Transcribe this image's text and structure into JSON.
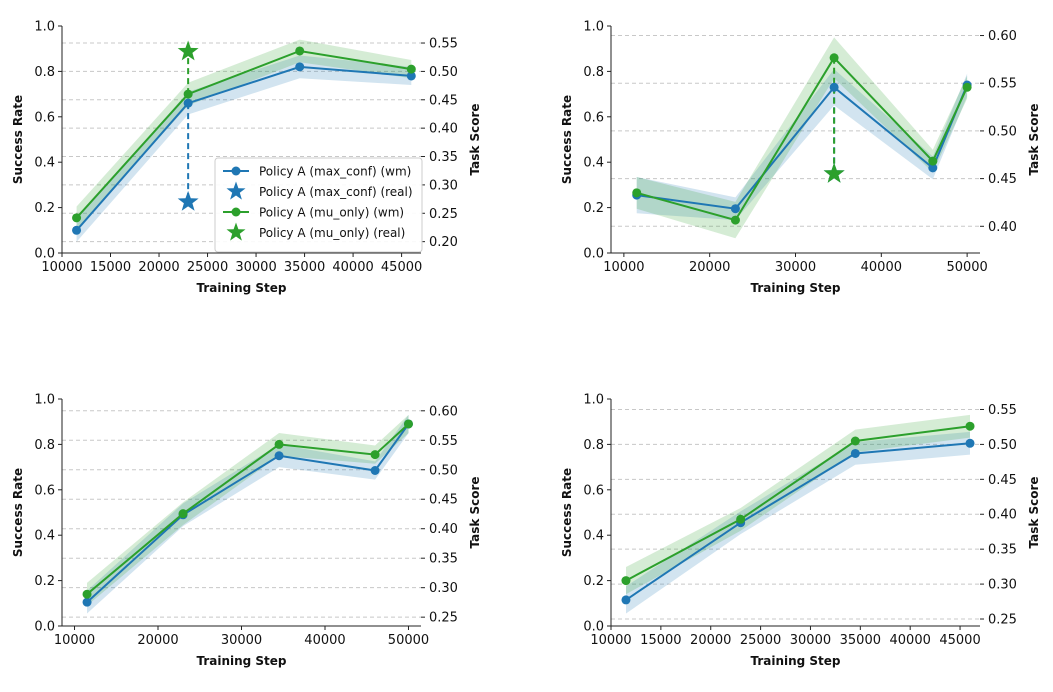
{
  "colors": {
    "policy_max_conf": "#1f77b4",
    "policy_mu_only": "#2ca02c",
    "grid": "#c8c8c8"
  },
  "legend": {
    "entries": [
      {
        "label": "Policy A (max_conf) (wm)",
        "series": "max_conf",
        "marker": "circle"
      },
      {
        "label": "Policy A (max_conf) (real)",
        "series": "max_conf",
        "marker": "star"
      },
      {
        "label": "Policy A (mu_only) (wm)",
        "series": "mu_only",
        "marker": "circle"
      },
      {
        "label": "Policy A (mu_only) (real)",
        "series": "mu_only",
        "marker": "star"
      }
    ]
  },
  "chart_data": [
    {
      "type": "line",
      "xlabel": "Training Step",
      "ylabel": "Success Rate",
      "y2label": "Task Score",
      "xlim": [
        10000,
        47000
      ],
      "ylim": [
        0,
        1.0
      ],
      "y2lim": [
        0.18,
        0.58
      ],
      "xticks": [
        10000,
        15000,
        20000,
        25000,
        30000,
        35000,
        40000,
        45000
      ],
      "yticks": [
        0.0,
        0.2,
        0.4,
        0.6,
        0.8,
        1.0
      ],
      "y2ticks": [
        0.2,
        0.25,
        0.3,
        0.35,
        0.4,
        0.45,
        0.5,
        0.55
      ],
      "grid": "horizontal-dashed (right axis)",
      "legend_position": "lower-right",
      "series": [
        {
          "name": "Policy A (max_conf) (wm)",
          "key": "max_conf",
          "x": [
            11500,
            23000,
            34500,
            46000
          ],
          "y": [
            0.1,
            0.66,
            0.82,
            0.78
          ],
          "band": [
            0.05,
            0.05,
            0.05,
            0.04
          ]
        },
        {
          "name": "Policy A (mu_only) (wm)",
          "key": "mu_only",
          "x": [
            11500,
            23000,
            34500,
            46000
          ],
          "y": [
            0.155,
            0.7,
            0.89,
            0.81
          ],
          "band": [
            0.05,
            0.05,
            0.05,
            0.04
          ]
        }
      ],
      "real": [
        {
          "name": "Policy A (max_conf) (real)",
          "key": "max_conf",
          "x": 23000,
          "y2": 0.27
        },
        {
          "name": "Policy A (mu_only) (real)",
          "key": "mu_only",
          "x": 23000,
          "y2": 0.535
        }
      ]
    },
    {
      "type": "line",
      "xlabel": "Training Step",
      "ylabel": "Success Rate",
      "y2label": "Task Score",
      "xlim": [
        8500,
        51500
      ],
      "ylim": [
        0,
        1.0
      ],
      "y2lim": [
        0.372,
        0.61
      ],
      "xticks": [
        10000,
        20000,
        30000,
        40000,
        50000
      ],
      "yticks": [
        0.0,
        0.2,
        0.4,
        0.6,
        0.8,
        1.0
      ],
      "y2ticks": [
        0.4,
        0.45,
        0.5,
        0.55,
        0.6
      ],
      "grid": "horizontal-dashed (right axis)",
      "series": [
        {
          "name": "Policy A (max_conf) (wm)",
          "key": "max_conf",
          "x": [
            11500,
            23000,
            34500,
            46000,
            50000
          ],
          "y": [
            0.255,
            0.195,
            0.73,
            0.375,
            0.74
          ],
          "band": [
            0.08,
            0.05,
            0.08,
            0.05,
            0.05
          ]
        },
        {
          "name": "Policy A (mu_only) (wm)",
          "key": "mu_only",
          "x": [
            11500,
            23000,
            34500,
            46000,
            50000
          ],
          "y": [
            0.265,
            0.145,
            0.86,
            0.405,
            0.73
          ],
          "band": [
            0.07,
            0.08,
            0.09,
            0.05,
            0.05
          ]
        }
      ],
      "real": [
        {
          "name": "Policy A (max_conf) (real)",
          "key": "max_conf",
          "x": 34500,
          "y2": 0.455
        },
        {
          "name": "Policy A (mu_only) (real)",
          "key": "mu_only",
          "x": 34500,
          "y2": 0.455
        }
      ]
    },
    {
      "type": "line",
      "xlabel": "Training Step",
      "ylabel": "Success Rate",
      "y2label": "Task Score",
      "xlim": [
        8500,
        51500
      ],
      "ylim": [
        0,
        1.0
      ],
      "y2lim": [
        0.235,
        0.62
      ],
      "xticks": [
        10000,
        20000,
        30000,
        40000,
        50000
      ],
      "yticks": [
        0.0,
        0.2,
        0.4,
        0.6,
        0.8,
        1.0
      ],
      "y2ticks": [
        0.25,
        0.3,
        0.35,
        0.4,
        0.45,
        0.5,
        0.55,
        0.6
      ],
      "grid": "horizontal-dashed (right axis)",
      "series": [
        {
          "name": "Policy A (max_conf) (wm)",
          "key": "max_conf",
          "x": [
            11500,
            23000,
            34500,
            46000,
            50000
          ],
          "y": [
            0.105,
            0.49,
            0.75,
            0.685,
            0.89
          ],
          "band": [
            0.05,
            0.05,
            0.05,
            0.04,
            0.04
          ]
        },
        {
          "name": "Policy A (mu_only) (wm)",
          "key": "mu_only",
          "x": [
            11500,
            23000,
            34500,
            46000,
            50000
          ],
          "y": [
            0.14,
            0.495,
            0.8,
            0.755,
            0.89
          ],
          "band": [
            0.05,
            0.05,
            0.05,
            0.04,
            0.04
          ]
        }
      ],
      "real": []
    },
    {
      "type": "line",
      "xlabel": "Training Step",
      "ylabel": "Success Rate",
      "y2label": "Task Score",
      "xlim": [
        10000,
        47000
      ],
      "ylim": [
        0,
        1.0
      ],
      "y2lim": [
        0.24,
        0.565
      ],
      "xticks": [
        10000,
        15000,
        20000,
        25000,
        30000,
        35000,
        40000,
        45000
      ],
      "yticks": [
        0.0,
        0.2,
        0.4,
        0.6,
        0.8,
        1.0
      ],
      "y2ticks": [
        0.25,
        0.3,
        0.35,
        0.4,
        0.45,
        0.5,
        0.55
      ],
      "grid": "horizontal-dashed (right axis)",
      "series": [
        {
          "name": "Policy A (max_conf) (wm)",
          "key": "max_conf",
          "x": [
            11500,
            23000,
            34500,
            46000
          ],
          "y": [
            0.115,
            0.455,
            0.76,
            0.805
          ],
          "band": [
            0.06,
            0.05,
            0.05,
            0.05
          ]
        },
        {
          "name": "Policy A (mu_only) (wm)",
          "key": "mu_only",
          "x": [
            11500,
            23000,
            34500,
            46000
          ],
          "y": [
            0.2,
            0.47,
            0.815,
            0.88
          ],
          "band": [
            0.06,
            0.05,
            0.05,
            0.05
          ]
        }
      ],
      "real": []
    }
  ]
}
